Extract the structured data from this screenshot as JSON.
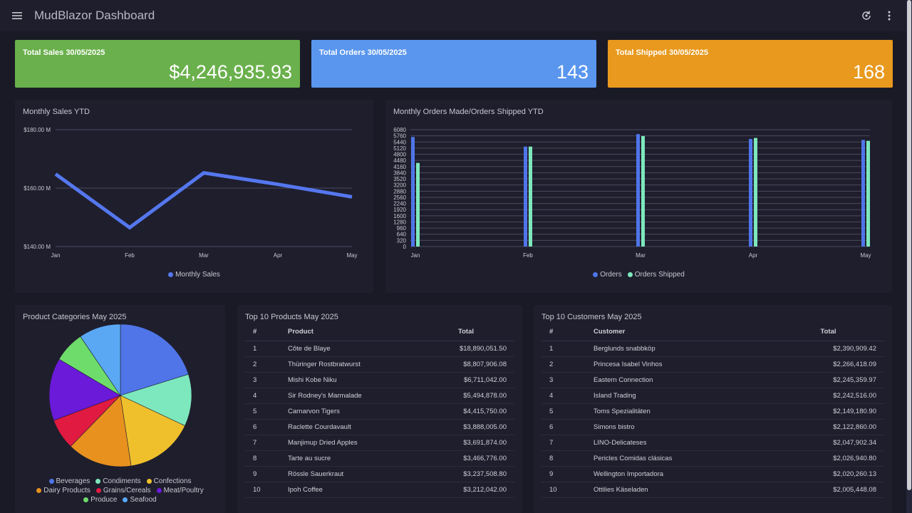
{
  "appbar": {
    "title": "MudBlazor Dashboard",
    "menu_icon": "menu-icon",
    "sync_icon": "sync-icon",
    "more_icon": "more-vert-icon"
  },
  "kpis": [
    {
      "label": "Total Sales 30/05/2025",
      "value": "$4,246,935.93",
      "color": "#6ab04c"
    },
    {
      "label": "Total Orders 30/05/2025",
      "value": "143",
      "color": "#5a96ee"
    },
    {
      "label": "Total Shipped 30/05/2025",
      "value": "168",
      "color": "#e8991e"
    }
  ],
  "monthly_sales": {
    "title": "Monthly Sales YTD",
    "legend": "Monthly Sales",
    "color": "#5577ee"
  },
  "monthly_orders": {
    "title": "Monthly Orders Made/Orders Shipped YTD",
    "legend_orders": "Orders",
    "legend_shipped": "Orders Shipped",
    "orders_color": "#4f75e8",
    "shipped_color": "#7de8bd"
  },
  "categories": {
    "title": "Product Categories May 2025",
    "items": [
      {
        "name": "Beverages",
        "color": "#4f75e8"
      },
      {
        "name": "Condiments",
        "color": "#7de8bd"
      },
      {
        "name": "Confections",
        "color": "#f0c02c"
      },
      {
        "name": "Dairy Products",
        "color": "#e8911e"
      },
      {
        "name": "Grains/Cereals",
        "color": "#e01a40"
      },
      {
        "name": "Meat/Poultry",
        "color": "#6a1ad8"
      },
      {
        "name": "Produce",
        "color": "#6edc6a"
      },
      {
        "name": "Seafood",
        "color": "#5aa8f4"
      }
    ]
  },
  "top_products": {
    "title": "Top 10 Products May 2025",
    "headers": [
      "#",
      "Product",
      "Total"
    ],
    "rows": [
      [
        "1",
        "Côte de Blaye",
        "$18,890,051.50"
      ],
      [
        "2",
        "Thüringer Rostbratwurst",
        "$8,807,906.08"
      ],
      [
        "3",
        "Mishi Kobe Niku",
        "$6,711,042.00"
      ],
      [
        "4",
        "Sir Rodney's Marmalade",
        "$5,494,878.00"
      ],
      [
        "5",
        "Carnarvon Tigers",
        "$4,415,750.00"
      ],
      [
        "6",
        "Raclette Courdavault",
        "$3,888,005.00"
      ],
      [
        "7",
        "Manjimup Dried Apples",
        "$3,691,874.00"
      ],
      [
        "8",
        "Tarte au sucre",
        "$3,466,776.00"
      ],
      [
        "9",
        "Rössle Sauerkraut",
        "$3,237,508.80"
      ],
      [
        "10",
        "Ipoh Coffee",
        "$3,212,042.00"
      ]
    ]
  },
  "top_customers": {
    "title": "Top 10 Customers May 2025",
    "headers": [
      "#",
      "Customer",
      "Total"
    ],
    "rows": [
      [
        "1",
        "Berglunds snabbköp",
        "$2,390,909.42"
      ],
      [
        "2",
        "Princesa Isabel Vinhos",
        "$2,266,418.09"
      ],
      [
        "3",
        "Eastern Connection",
        "$2,245,359.97"
      ],
      [
        "4",
        "Island Trading",
        "$2,242,516.00"
      ],
      [
        "5",
        "Toms Spezialitäten",
        "$2,149,180.90"
      ],
      [
        "6",
        "Simons bistro",
        "$2,122,860.00"
      ],
      [
        "7",
        "LINO-Delicateses",
        "$2,047,902.34"
      ],
      [
        "8",
        "Pericles Comidas clásicas",
        "$2,026,940.80"
      ],
      [
        "9",
        "Wellington Importadora",
        "$2,020,260.13"
      ],
      [
        "10",
        "Ottilies Käseladen",
        "$2,005,448.08"
      ]
    ]
  },
  "chart_data": [
    {
      "type": "line",
      "title": "Monthly Sales YTD",
      "categories": [
        "Jan",
        "Feb",
        "Mar",
        "Apr",
        "May"
      ],
      "series": [
        {
          "name": "Monthly Sales",
          "values": [
            164.8,
            146.5,
            165.2,
            161.3,
            157.0
          ]
        }
      ],
      "ylim": [
        140,
        180
      ],
      "yticks": [
        140,
        160,
        180
      ],
      "ytick_labels": [
        "$140.00 M",
        "$160.00 M",
        "$180.00 M"
      ],
      "grid": true,
      "legend": "bottom"
    },
    {
      "type": "bar",
      "title": "Monthly Orders Made/Orders Shipped YTD",
      "categories": [
        "Jan",
        "Feb",
        "Mar",
        "Apr",
        "May"
      ],
      "series": [
        {
          "name": "Orders",
          "values": [
            5700,
            5200,
            5850,
            5600,
            5550
          ]
        },
        {
          "name": "Orders Shipped",
          "values": [
            4350,
            5200,
            5750,
            5650,
            5500
          ]
        }
      ],
      "ylim": [
        0,
        6080
      ],
      "yticks": [
        0,
        320,
        640,
        960,
        1280,
        1600,
        1920,
        2240,
        2560,
        2880,
        3200,
        3520,
        3840,
        4160,
        4480,
        4800,
        5120,
        5440,
        5760,
        6080
      ],
      "grid": true,
      "legend": "bottom"
    },
    {
      "type": "pie",
      "title": "Product Categories May 2025",
      "labels": [
        "Beverages",
        "Condiments",
        "Confections",
        "Dairy Products",
        "Grains/Cereals",
        "Meat/Poultry",
        "Produce",
        "Seafood"
      ],
      "values": [
        20.2,
        11.8,
        15.6,
        14.7,
        7.0,
        14.2,
        7.0,
        9.5
      ],
      "legend": "bottom"
    }
  ]
}
